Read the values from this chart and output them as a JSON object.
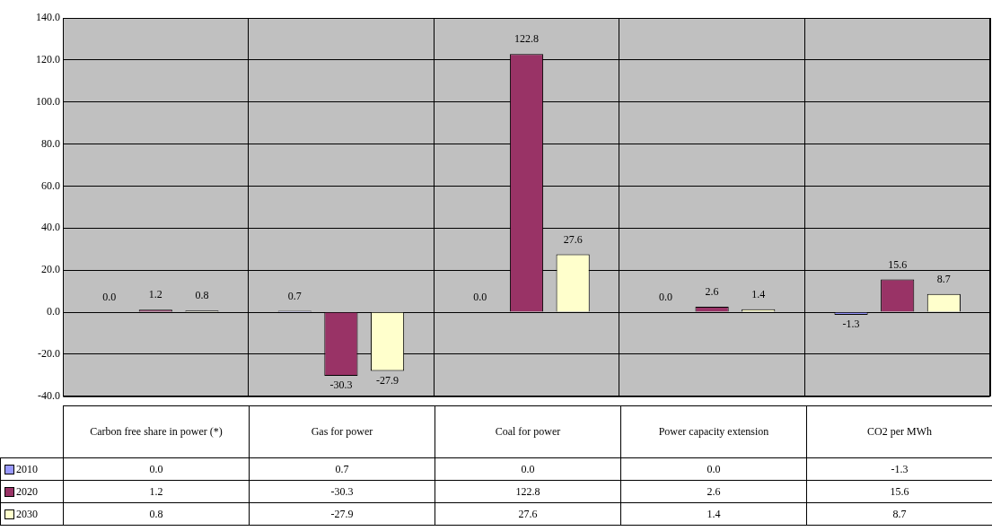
{
  "chart_data": {
    "type": "bar",
    "categories": [
      "Carbon free share in power (*)",
      "Gas for power",
      "Coal for power",
      "Power capacity extension",
      "CO2 per MWh"
    ],
    "series": [
      {
        "name": "2010",
        "color": "#9999ff",
        "values": [
          0.0,
          0.7,
          0.0,
          0.0,
          -1.3
        ],
        "value_labels": [
          "0.0",
          "0.7",
          "0.0",
          "0.0",
          "-1.3"
        ]
      },
      {
        "name": "2020",
        "color": "#993366",
        "values": [
          1.2,
          -30.3,
          122.8,
          2.6,
          15.6
        ],
        "value_labels": [
          "1.2",
          "-30.3",
          "122.8",
          "2.6",
          "15.6"
        ]
      },
      {
        "name": "2030",
        "color": "#ffffcc",
        "values": [
          0.8,
          -27.9,
          27.6,
          1.4,
          8.7
        ],
        "value_labels": [
          "0.8",
          "-27.9",
          "27.6",
          "1.4",
          "8.7"
        ]
      }
    ],
    "ylim": [
      -40,
      140
    ],
    "yticks": [
      {
        "value": -40,
        "label": "-40.0"
      },
      {
        "value": -20,
        "label": "-20.0"
      },
      {
        "value": 0,
        "label": "0.0"
      },
      {
        "value": 20,
        "label": "20.0"
      },
      {
        "value": 40,
        "label": "40.0"
      },
      {
        "value": 60,
        "label": "60.0"
      },
      {
        "value": 80,
        "label": "80.0"
      },
      {
        "value": 100,
        "label": "100.0"
      },
      {
        "value": 120,
        "label": "120.0"
      },
      {
        "value": 140,
        "label": "140.0"
      }
    ],
    "grid": true,
    "legend": "bottom left"
  }
}
